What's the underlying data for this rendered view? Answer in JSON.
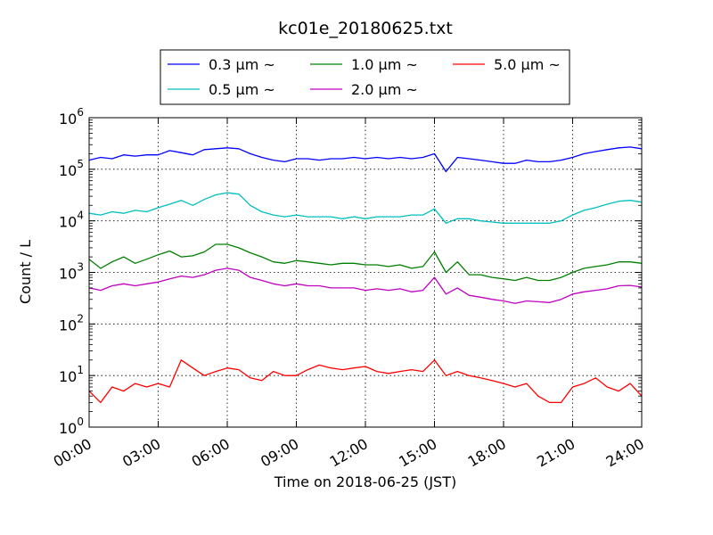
{
  "chart_data": {
    "type": "line",
    "title": "kc01e_20180625.txt",
    "xlabel": "Time on 2018-06-25 (JST)",
    "ylabel": "Count / L",
    "yscale": "log",
    "ylim": [
      1,
      1000000
    ],
    "xlim": [
      "00:00",
      "24:00"
    ],
    "grid": true,
    "legend_position": "top",
    "x_ticks": [
      "00:00",
      "03:00",
      "06:00",
      "09:00",
      "12:00",
      "15:00",
      "18:00",
      "21:00",
      "24:00"
    ],
    "y_ticks": [
      {
        "base": "10",
        "exp": "0",
        "value": 1
      },
      {
        "base": "10",
        "exp": "1",
        "value": 10
      },
      {
        "base": "10",
        "exp": "2",
        "value": 100
      },
      {
        "base": "10",
        "exp": "3",
        "value": 1000
      },
      {
        "base": "10",
        "exp": "4",
        "value": 10000
      },
      {
        "base": "10",
        "exp": "5",
        "value": 100000
      },
      {
        "base": "10",
        "exp": "6",
        "value": 1000000
      }
    ],
    "x": [
      "00:00",
      "00:30",
      "01:00",
      "01:30",
      "02:00",
      "02:30",
      "03:00",
      "03:30",
      "04:00",
      "04:30",
      "05:00",
      "05:30",
      "06:00",
      "06:30",
      "07:00",
      "07:30",
      "08:00",
      "08:30",
      "09:00",
      "09:30",
      "10:00",
      "10:30",
      "11:00",
      "11:30",
      "12:00",
      "12:30",
      "13:00",
      "13:30",
      "14:00",
      "14:30",
      "15:00",
      "15:30",
      "16:00",
      "16:30",
      "17:00",
      "17:30",
      "18:00",
      "18:30",
      "19:00",
      "19:30",
      "20:00",
      "20:30",
      "21:00",
      "21:30",
      "22:00",
      "22:30",
      "23:00",
      "23:30",
      "24:00"
    ],
    "series": [
      {
        "name": "0.3 μm ~",
        "color": "#0000ff",
        "values": [
          150000,
          170000,
          160000,
          190000,
          180000,
          190000,
          190000,
          230000,
          210000,
          190000,
          240000,
          250000,
          260000,
          250000,
          200000,
          170000,
          150000,
          140000,
          160000,
          160000,
          150000,
          160000,
          160000,
          170000,
          160000,
          170000,
          160000,
          170000,
          160000,
          170000,
          200000,
          90000,
          170000,
          160000,
          150000,
          140000,
          130000,
          130000,
          150000,
          140000,
          140000,
          150000,
          170000,
          200000,
          220000,
          240000,
          260000,
          270000,
          250000
        ]
      },
      {
        "name": "0.5 μm ~",
        "color": "#00bfbf",
        "values": [
          14000,
          13000,
          15000,
          14000,
          16000,
          15000,
          18000,
          21000,
          25000,
          20000,
          26000,
          32000,
          35000,
          33000,
          20000,
          15000,
          13000,
          12000,
          13000,
          12000,
          12000,
          12000,
          11000,
          12000,
          11000,
          12000,
          12000,
          12000,
          13000,
          13000,
          17000,
          9000,
          11000,
          11000,
          10000,
          9500,
          9000,
          9000,
          9000,
          9000,
          9000,
          10000,
          13000,
          16000,
          18000,
          21000,
          24000,
          25000,
          23000
        ]
      },
      {
        "name": "1.0 μm ~",
        "color": "#008000",
        "values": [
          1800,
          1200,
          1600,
          2000,
          1500,
          1800,
          2200,
          2600,
          2000,
          2100,
          2500,
          3500,
          3500,
          3000,
          2400,
          2000,
          1600,
          1500,
          1700,
          1600,
          1500,
          1400,
          1500,
          1500,
          1400,
          1400,
          1300,
          1400,
          1200,
          1300,
          2500,
          1000,
          1600,
          900,
          900,
          800,
          750,
          700,
          800,
          700,
          700,
          800,
          1000,
          1200,
          1300,
          1400,
          1600,
          1600,
          1500
        ]
      },
      {
        "name": "2.0 μm ~",
        "color": "#bf00bf",
        "values": [
          500,
          450,
          550,
          600,
          550,
          600,
          650,
          750,
          850,
          800,
          900,
          1100,
          1200,
          1100,
          800,
          700,
          600,
          550,
          600,
          550,
          550,
          500,
          500,
          500,
          450,
          480,
          450,
          480,
          420,
          450,
          800,
          380,
          500,
          360,
          330,
          300,
          280,
          250,
          280,
          270,
          260,
          300,
          380,
          420,
          450,
          480,
          550,
          560,
          520
        ]
      },
      {
        "name": "5.0 μm ~",
        "color": "#ff0000",
        "values": [
          5,
          3,
          6,
          5,
          7,
          6,
          7,
          6,
          20,
          14,
          10,
          12,
          14,
          13,
          9,
          8,
          12,
          10,
          10,
          13,
          16,
          14,
          13,
          14,
          15,
          12,
          11,
          12,
          13,
          12,
          20,
          10,
          12,
          10,
          9,
          8,
          7,
          6,
          7,
          4,
          3,
          3,
          6,
          7,
          9,
          6,
          5,
          7,
          4
        ]
      }
    ]
  }
}
